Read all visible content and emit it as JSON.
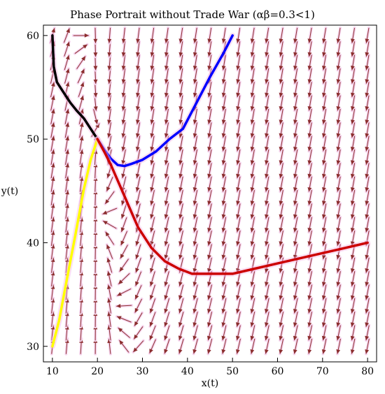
{
  "chart_data": {
    "type": "line",
    "title": "Phase Portrait without Trade War (αβ=0.3<1)",
    "xlabel": "x(t)",
    "ylabel": "y(t)",
    "xlim": [
      8,
      82
    ],
    "ylim": [
      28.5,
      61
    ],
    "xticks": [
      "10",
      "20",
      "30",
      "40",
      "50",
      "60",
      "70",
      "80"
    ],
    "yticks": [
      "30",
      "40",
      "50",
      "60"
    ],
    "equilibrium": [
      20,
      50
    ],
    "vector_field": {
      "x_range": [
        10,
        80
      ],
      "y_range": [
        30,
        60
      ],
      "x_count": 23,
      "y_count": 24,
      "arrow_color": "#8b2e2e",
      "highlight_color": "#f6d6ef"
    },
    "series": [
      {
        "color": "#000000",
        "points": [
          [
            10,
            60
          ],
          [
            10.3,
            57
          ],
          [
            11,
            55.5
          ],
          [
            12.5,
            54.5
          ],
          [
            14,
            53.5
          ],
          [
            15.5,
            52.7
          ],
          [
            17,
            52
          ],
          [
            18.5,
            51
          ],
          [
            20,
            50
          ]
        ]
      },
      {
        "color": "#0000ff",
        "points": [
          [
            50,
            60
          ],
          [
            48,
            58.3
          ],
          [
            45,
            56
          ],
          [
            42,
            53.5
          ],
          [
            39,
            51
          ],
          [
            36,
            50
          ],
          [
            33,
            48.8
          ],
          [
            30,
            48
          ],
          [
            27.5,
            47.6
          ],
          [
            26,
            47.4
          ],
          [
            24.5,
            47.5
          ],
          [
            23,
            48.1
          ],
          [
            21.5,
            49
          ],
          [
            20,
            50
          ]
        ]
      },
      {
        "color": "#ffff00",
        "points": [
          [
            10,
            30
          ],
          [
            11.5,
            32.5
          ],
          [
            13,
            36
          ],
          [
            15,
            40.5
          ],
          [
            17,
            45.2
          ],
          [
            18.5,
            48
          ],
          [
            20,
            50
          ]
        ]
      },
      {
        "color": "#cc0000",
        "points": [
          [
            80,
            40
          ],
          [
            75,
            39.5
          ],
          [
            70,
            39
          ],
          [
            65,
            38.5
          ],
          [
            60,
            38
          ],
          [
            55,
            37.5
          ],
          [
            50,
            37
          ],
          [
            45,
            37
          ],
          [
            41,
            37
          ],
          [
            38,
            37.5
          ],
          [
            35,
            38.2
          ],
          [
            32,
            39.5
          ],
          [
            29,
            41.5
          ],
          [
            26,
            44.5
          ],
          [
            23,
            47.5
          ],
          [
            21.5,
            48.8
          ],
          [
            20,
            50
          ]
        ]
      }
    ]
  }
}
